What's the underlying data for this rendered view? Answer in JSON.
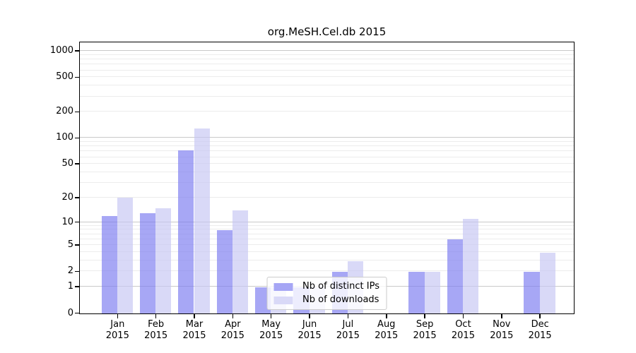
{
  "chart_data": {
    "type": "bar",
    "title": "org.MeSH.Cel.db 2015",
    "yscale": "log1p",
    "ylim": [
      0,
      1250
    ],
    "yticks": [
      0,
      1,
      2,
      5,
      10,
      20,
      50,
      100,
      200,
      500,
      1000
    ],
    "grid": "horizontal major+minor log lines, no vertical grid",
    "legend_position": "lower center",
    "categories": [
      {
        "month": "Jan",
        "year": "2015"
      },
      {
        "month": "Feb",
        "year": "2015"
      },
      {
        "month": "Mar",
        "year": "2015"
      },
      {
        "month": "Apr",
        "year": "2015"
      },
      {
        "month": "May",
        "year": "2015"
      },
      {
        "month": "Jun",
        "year": "2015"
      },
      {
        "month": "Jul",
        "year": "2015"
      },
      {
        "month": "Aug",
        "year": "2015"
      },
      {
        "month": "Sep",
        "year": "2015"
      },
      {
        "month": "Oct",
        "year": "2015"
      },
      {
        "month": "Nov",
        "year": "2015"
      },
      {
        "month": "Dec",
        "year": "2015"
      }
    ],
    "series": [
      {
        "name": "Nb of distinct IPs",
        "key": "ips",
        "values": [
          12,
          13,
          73,
          8,
          1,
          1,
          2,
          0,
          2,
          6,
          0,
          2
        ]
      },
      {
        "name": "Nb of downloads",
        "key": "downloads",
        "values": [
          20,
          15,
          130,
          14,
          1,
          1,
          3,
          0,
          2,
          11,
          0,
          4
        ]
      }
    ]
  },
  "legend": {
    "items": [
      {
        "label": "Nb of distinct IPs",
        "series": "ips"
      },
      {
        "label": "Nb of downloads",
        "series": "downloads"
      }
    ]
  },
  "colors": {
    "ips_bar": "rgba(121,121,240,0.66)",
    "downloads_bar": "rgba(198,198,243,0.66)",
    "ips_solid": "#a6a6f5",
    "downloads_solid": "#d9d9f7",
    "grid_major": "#c9c9c9",
    "grid_minor": "#ececec",
    "axis": "#000000",
    "legend_border": "#cccccc"
  }
}
